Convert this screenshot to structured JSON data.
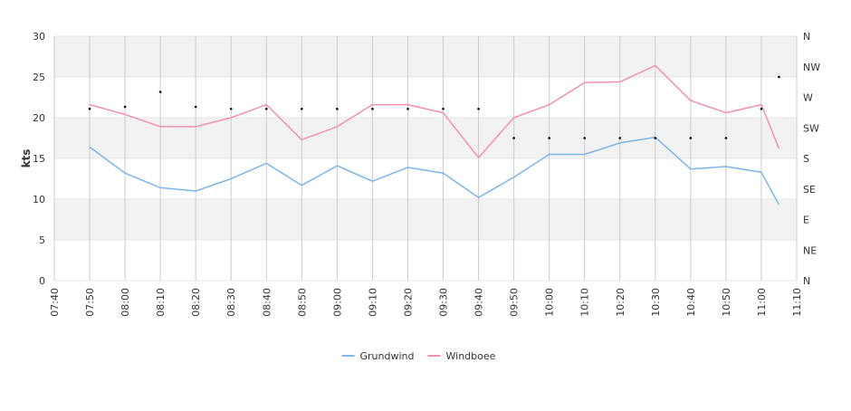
{
  "chart_data": {
    "type": "line",
    "ylabel": "kts",
    "ylim": [
      0,
      30
    ],
    "y_ticks": [
      0,
      5,
      10,
      15,
      20,
      25,
      30
    ],
    "x_ticks": [
      "07:40",
      "07:50",
      "08:00",
      "08:10",
      "08:20",
      "08:30",
      "08:40",
      "08:50",
      "09:00",
      "09:10",
      "09:20",
      "09:30",
      "09:40",
      "09:50",
      "10:00",
      "10:10",
      "10:20",
      "10:30",
      "10:40",
      "10:50",
      "11:00",
      "11:10"
    ],
    "x_range": [
      "07:40",
      "11:10"
    ],
    "right_axis": {
      "labels": [
        "N",
        "NE",
        "E",
        "SE",
        "S",
        "SW",
        "W",
        "NW",
        "N"
      ],
      "range_degrees": [
        0,
        360
      ]
    },
    "series": [
      {
        "name": "Grundwind",
        "color": "#7cb5ec",
        "x": [
          "07:50",
          "08:00",
          "08:10",
          "08:20",
          "08:30",
          "08:40",
          "08:50",
          "09:00",
          "09:10",
          "09:20",
          "09:30",
          "09:40",
          "09:50",
          "10:00",
          "10:10",
          "10:20",
          "10:30",
          "10:40",
          "10:50",
          "11:00",
          "11:05"
        ],
        "values": [
          16.4,
          13.2,
          11.4,
          11.0,
          12.5,
          14.4,
          11.7,
          14.1,
          12.2,
          13.9,
          13.2,
          10.2,
          12.7,
          15.5,
          15.5,
          16.9,
          17.6,
          13.7,
          14.0,
          13.3,
          9.3
        ]
      },
      {
        "name": "Windboee",
        "color": "#f48fb1",
        "x": [
          "07:50",
          "08:00",
          "08:10",
          "08:20",
          "08:30",
          "08:40",
          "08:50",
          "09:00",
          "09:10",
          "09:20",
          "09:30",
          "09:40",
          "09:50",
          "10:00",
          "10:10",
          "10:20",
          "10:30",
          "10:40",
          "10:50",
          "11:00",
          "11:05"
        ],
        "values": [
          21.6,
          20.4,
          18.9,
          18.9,
          20.0,
          21.6,
          17.3,
          18.9,
          21.6,
          21.6,
          20.6,
          15.1,
          20.0,
          21.6,
          24.3,
          24.4,
          26.4,
          22.1,
          20.6,
          21.6,
          16.2
        ]
      }
    ],
    "direction_points": {
      "x": [
        "07:50",
        "08:00",
        "08:10",
        "08:20",
        "08:30",
        "08:40",
        "08:50",
        "09:00",
        "09:10",
        "09:20",
        "09:30",
        "09:40",
        "09:50",
        "10:00",
        "10:10",
        "10:20",
        "10:30",
        "10:40",
        "10:50",
        "11:00",
        "11:05"
      ],
      "degrees": [
        253,
        256,
        278,
        256,
        253,
        253,
        253,
        253,
        253,
        253,
        253,
        253,
        210,
        210,
        210,
        210,
        210,
        210,
        210,
        253,
        300
      ]
    },
    "legend_position": "bottom",
    "grid": true
  }
}
